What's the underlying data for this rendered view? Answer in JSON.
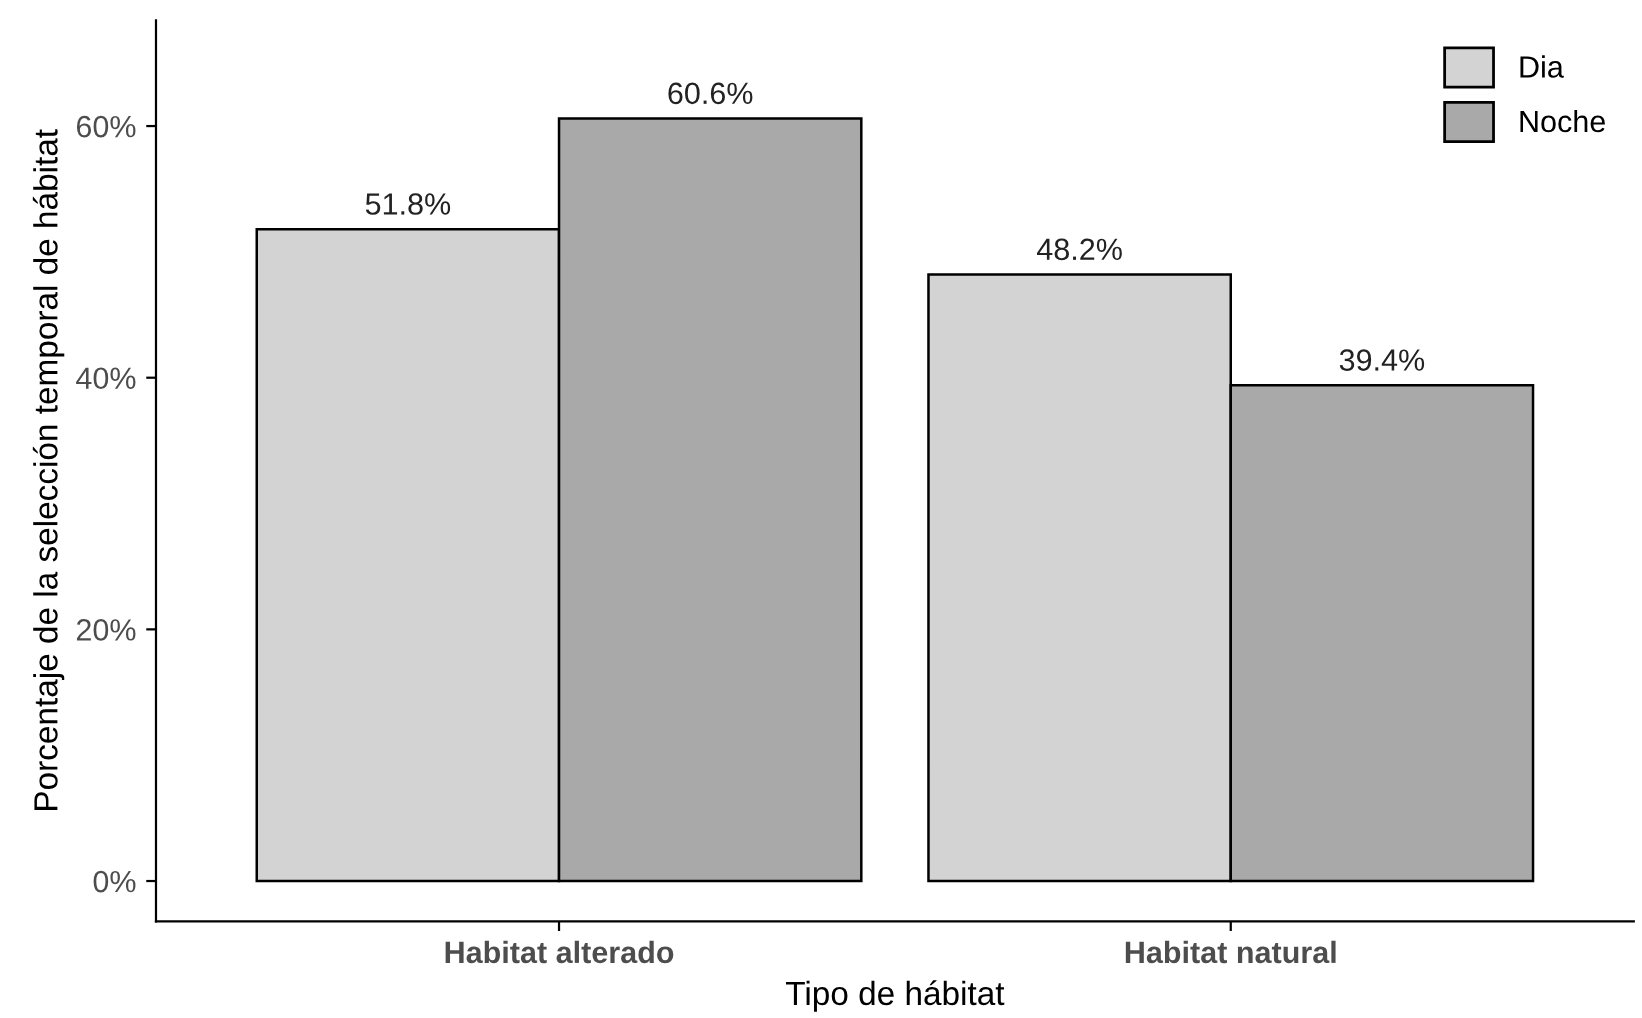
{
  "chart_data": {
    "type": "bar",
    "xlabel": "Tipo de hábitat",
    "ylabel": "Porcentaje de la selección temporal de hábitat",
    "categories": [
      "Habitat alterado",
      "Habitat natural"
    ],
    "series": [
      {
        "name": "Dia",
        "color": "#d3d3d3",
        "values": [
          51.8,
          48.2
        ],
        "value_labels": [
          "51.8%",
          "48.2%"
        ]
      },
      {
        "name": "Noche",
        "color": "#a9a9a9",
        "values": [
          60.6,
          39.4
        ],
        "value_labels": [
          "60.6%",
          "39.4%"
        ]
      }
    ],
    "ylim": [
      -3.2,
      68.4
    ],
    "yticks": [
      {
        "value": 0,
        "label": "0%"
      },
      {
        "value": 20,
        "label": "20%"
      },
      {
        "value": 40,
        "label": "40%"
      },
      {
        "value": 60,
        "label": "60%"
      }
    ],
    "grid": false,
    "legend": "top right"
  }
}
